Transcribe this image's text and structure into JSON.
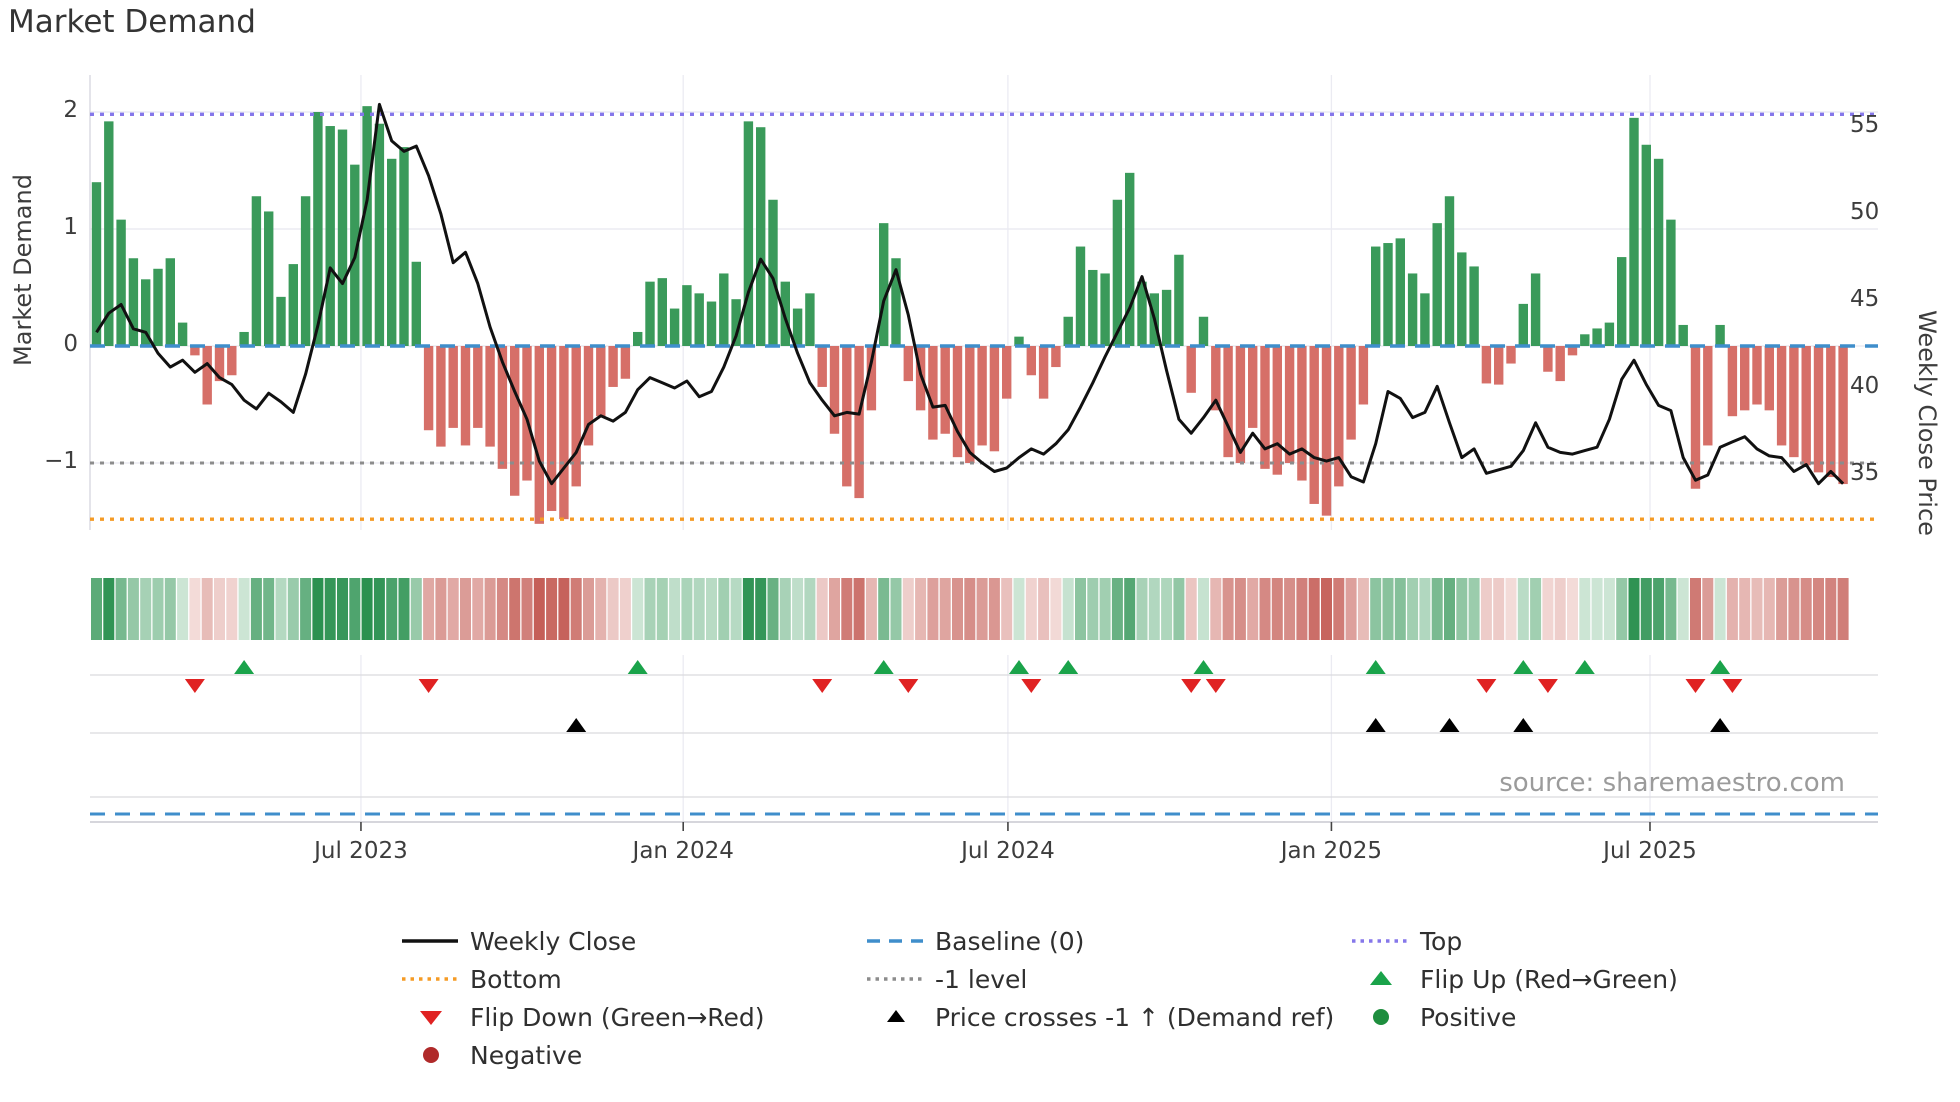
{
  "title": "Market Demand",
  "y_left_label": "Market Demand",
  "y_right_label": "Weekly Close Price",
  "source": "source: sharemaestro.com",
  "colors": {
    "green_bar": "#3a9a5a",
    "red_bar": "#d66f68",
    "price_line": "#111111",
    "baseline_blue": "#3f8ecb",
    "top_purple": "#8577ea",
    "minus1_gray": "#8c8c8c",
    "bottom_orange": "#f59b25",
    "flip_up_green": "#1aa34a",
    "flip_down_red": "#e02222",
    "cross_black": "#000000",
    "positive_dot": "#1e8e3e",
    "negative_dot": "#b02a2a",
    "heat_green_strong": "#2b9150",
    "heat_green_weak": "#e6f3ea",
    "heat_red_strong": "#c45c55",
    "heat_red_weak": "#f8e9e7",
    "grid": "#ebebf2",
    "spine": "#c9c9d0",
    "panel_line": "#dadade",
    "tick_mark": "#444444"
  },
  "chart_data": {
    "type": "bar+line",
    "title": "Market Demand",
    "x_unit": "weekly bars, ~Feb 2023 to Nov 2025",
    "x_tick_labels": [
      "Jul 2023",
      "Jan 2024",
      "Jul 2024",
      "Jan 2025",
      "Jul 2025"
    ],
    "x_tick_positions_weeks": [
      21.5,
      47.7,
      74.1,
      100.4,
      126.3
    ],
    "left_axis": {
      "label": "Market Demand",
      "tick_labels": [
        "−1",
        "0",
        "1",
        "2"
      ],
      "tick_values": [
        -1,
        0,
        1,
        2
      ]
    },
    "right_axis": {
      "label": "Weekly Close Price",
      "tick_labels": [
        "35",
        "40",
        "45",
        "50",
        "55"
      ],
      "tick_values": [
        35,
        40,
        45,
        50,
        55
      ]
    },
    "levels": {
      "baseline": 0,
      "top": 1.98,
      "minus1": -1,
      "bottom": -1.48
    },
    "series": [
      {
        "name": "Market Demand",
        "type": "bar",
        "axis": "left",
        "values": [
          1.4,
          1.92,
          1.08,
          0.75,
          0.57,
          0.66,
          0.75,
          0.2,
          -0.08,
          -0.5,
          -0.3,
          -0.25,
          0.12,
          1.28,
          1.15,
          0.42,
          0.7,
          1.28,
          2.0,
          1.88,
          1.85,
          1.55,
          2.05,
          1.9,
          1.6,
          1.7,
          0.72,
          -0.72,
          -0.86,
          -0.7,
          -0.85,
          -0.7,
          -0.86,
          -1.05,
          -1.28,
          -1.15,
          -1.52,
          -1.41,
          -1.48,
          -1.2,
          -0.85,
          -0.6,
          -0.35,
          -0.28,
          0.12,
          0.55,
          0.58,
          0.32,
          0.52,
          0.45,
          0.38,
          0.62,
          0.4,
          1.92,
          1.87,
          1.25,
          0.55,
          0.32,
          0.45,
          -0.35,
          -0.75,
          -1.2,
          -1.3,
          -0.55,
          1.05,
          0.75,
          -0.3,
          -0.55,
          -0.8,
          -0.75,
          -0.95,
          -1.0,
          -0.85,
          -0.9,
          -0.45,
          0.08,
          -0.25,
          -0.45,
          -0.18,
          0.25,
          0.85,
          0.65,
          0.62,
          1.25,
          1.48,
          0.55,
          0.45,
          0.48,
          0.78,
          -0.4,
          0.25,
          -0.55,
          -0.95,
          -1.0,
          -0.7,
          -1.05,
          -1.1,
          -1.0,
          -1.15,
          -1.35,
          -1.45,
          -1.2,
          -0.8,
          -0.5,
          0.85,
          0.88,
          0.92,
          0.62,
          0.45,
          1.05,
          1.28,
          0.8,
          0.68,
          -0.32,
          -0.33,
          -0.15,
          0.36,
          0.62,
          -0.22,
          -0.3,
          -0.08,
          0.1,
          0.15,
          0.2,
          0.76,
          1.95,
          1.72,
          1.6,
          1.08,
          0.18,
          -1.22,
          -0.85,
          0.18,
          -0.6,
          -0.55,
          -0.5,
          -0.55,
          -0.85,
          -0.95,
          -1.02,
          -1.08,
          -1.12,
          -1.18
        ]
      },
      {
        "name": "Weekly Close",
        "type": "line",
        "axis": "right",
        "values": [
          43.2,
          44.3,
          44.8,
          43.4,
          43.2,
          42.0,
          41.2,
          41.6,
          40.9,
          41.4,
          40.6,
          40.2,
          39.3,
          38.8,
          39.7,
          39.2,
          38.6,
          40.8,
          43.6,
          46.9,
          46.0,
          47.5,
          50.8,
          56.3,
          54.2,
          53.6,
          53.9,
          52.2,
          50.0,
          47.2,
          47.8,
          46.0,
          43.5,
          41.5,
          39.8,
          38.2,
          35.8,
          34.5,
          35.4,
          36.3,
          37.9,
          38.4,
          38.1,
          38.6,
          39.9,
          40.6,
          40.3,
          40.0,
          40.4,
          39.5,
          39.8,
          41.2,
          43.0,
          45.5,
          47.4,
          46.3,
          44.0,
          42.0,
          40.3,
          39.3,
          38.4,
          38.6,
          38.5,
          41.5,
          45.0,
          46.8,
          44.2,
          40.8,
          38.9,
          39.0,
          37.5,
          36.3,
          35.7,
          35.2,
          35.4,
          36.0,
          36.5,
          36.2,
          36.8,
          37.6,
          38.9,
          40.3,
          41.8,
          43.2,
          44.6,
          46.4,
          44.0,
          41.0,
          38.2,
          37.4,
          38.3,
          39.3,
          37.8,
          36.3,
          37.4,
          36.5,
          36.8,
          36.2,
          36.5,
          36.0,
          35.8,
          36.0,
          34.9,
          34.6,
          36.8,
          39.8,
          39.4,
          38.3,
          38.6,
          40.1,
          38.0,
          36.0,
          36.5,
          35.1,
          35.3,
          35.5,
          36.4,
          38.0,
          36.6,
          36.3,
          36.2,
          36.4,
          36.6,
          38.2,
          40.5,
          41.6,
          40.2,
          39.0,
          38.7,
          36.0,
          34.7,
          35.0,
          36.6,
          36.9,
          37.2,
          36.5,
          36.1,
          36.0,
          35.2,
          35.6,
          34.5,
          35.2,
          34.5
        ]
      }
    ],
    "markers": {
      "flip_up_weeks": [
        12,
        44,
        64,
        75,
        79,
        90,
        104,
        116,
        121,
        132
      ],
      "flip_down_weeks": [
        8,
        27,
        59,
        66,
        76,
        89,
        91,
        113,
        118,
        130,
        133
      ],
      "price_cross_weeks": [
        39,
        104,
        110,
        116,
        132
      ]
    },
    "heatmap": "strip below chart mirrors demand values: green = positive, red = negative, intensity = |value|"
  },
  "legend": {
    "columns": [
      [
        {
          "label": "Weekly Close",
          "swatch": "line-black"
        },
        {
          "label": "Bottom",
          "swatch": "dotted-orange"
        },
        {
          "label": "Flip Down (Green→Red)",
          "swatch": "triangle-down-red"
        },
        {
          "label": "Negative",
          "swatch": "circle-darkred"
        }
      ],
      [
        {
          "label": "Baseline (0)",
          "swatch": "dashed-blue"
        },
        {
          "label": "-1 level",
          "swatch": "dotted-gray"
        },
        {
          "label": "Price crosses -1 ↑ (Demand ref)",
          "swatch": "triangle-up-black"
        }
      ],
      [
        {
          "label": "Top",
          "swatch": "dotted-purple"
        },
        {
          "label": "Flip Up (Red→Green)",
          "swatch": "triangle-up-green"
        },
        {
          "label": "Positive",
          "swatch": "circle-green"
        }
      ]
    ]
  }
}
